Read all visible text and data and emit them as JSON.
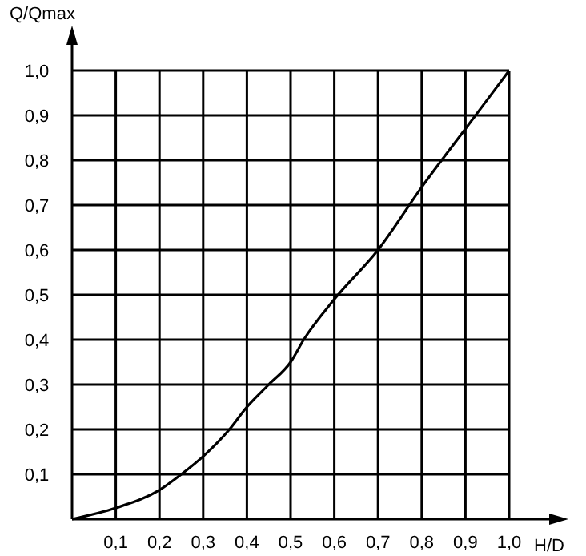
{
  "chart_data": {
    "type": "line",
    "xlabel": "H/D",
    "ylabel": "Q/Qmax",
    "x": [
      0,
      0.1,
      0.2,
      0.25,
      0.3,
      0.36,
      0.4,
      0.45,
      0.5,
      0.53,
      0.6,
      0.7,
      0.8,
      0.9,
      1.0
    ],
    "series": [
      {
        "color": "#000000",
        "values": [
          0,
          0.025,
          0.065,
          0.1,
          0.14,
          0.2,
          0.25,
          0.3,
          0.35,
          0.4,
          0.49,
          0.6,
          0.74,
          0.87,
          1.0
        ]
      }
    ],
    "xlim": [
      0,
      1
    ],
    "ylim": [
      0,
      1
    ],
    "xticks": [
      {
        "value": 0.1,
        "label": "0,1"
      },
      {
        "value": 0.2,
        "label": "0,2"
      },
      {
        "value": 0.3,
        "label": "0,3"
      },
      {
        "value": 0.4,
        "label": "0,4"
      },
      {
        "value": 0.5,
        "label": "0,5"
      },
      {
        "value": 0.6,
        "label": "0,6"
      },
      {
        "value": 0.7,
        "label": "0,7"
      },
      {
        "value": 0.8,
        "label": "0,8"
      },
      {
        "value": 0.9,
        "label": "0,9"
      },
      {
        "value": 1.0,
        "label": "1,0"
      }
    ],
    "yticks": [
      {
        "value": 0.1,
        "label": "0,1"
      },
      {
        "value": 0.2,
        "label": "0,2"
      },
      {
        "value": 0.3,
        "label": "0,3"
      },
      {
        "value": 0.4,
        "label": "0,4"
      },
      {
        "value": 0.5,
        "label": "0,5"
      },
      {
        "value": 0.6,
        "label": "0,6"
      },
      {
        "value": 0.7,
        "label": "0,7"
      },
      {
        "value": 0.8,
        "label": "0,8"
      },
      {
        "value": 0.9,
        "label": "0,9"
      },
      {
        "value": 1.0,
        "label": "1,0"
      }
    ],
    "grid": true,
    "marker": "none",
    "line_style": "solid"
  }
}
